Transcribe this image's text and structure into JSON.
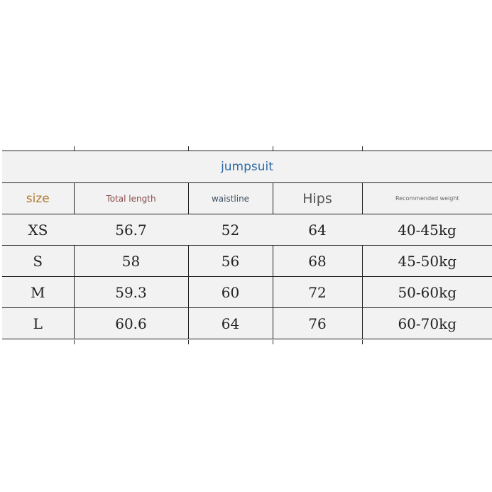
{
  "title": "jumpsuit",
  "headers": [
    {
      "label": "size",
      "color": "#b07a2e"
    },
    {
      "label": "Total length",
      "color": "#8a4a4a"
    },
    {
      "label": "waistline",
      "color": "#3e5060"
    },
    {
      "label": "Hips",
      "color": "#555555"
    },
    {
      "label": "Recommended weight",
      "color": "#666666"
    }
  ],
  "rows": [
    [
      "XS",
      "56.7",
      "52",
      "64",
      "40-45kg"
    ],
    [
      "S",
      "58",
      "56",
      "68",
      "45-50kg"
    ],
    [
      "M",
      "59.3",
      "60",
      "72",
      "50-60kg"
    ],
    [
      "L",
      "60.6",
      "64",
      "76",
      "60-70kg"
    ]
  ]
}
